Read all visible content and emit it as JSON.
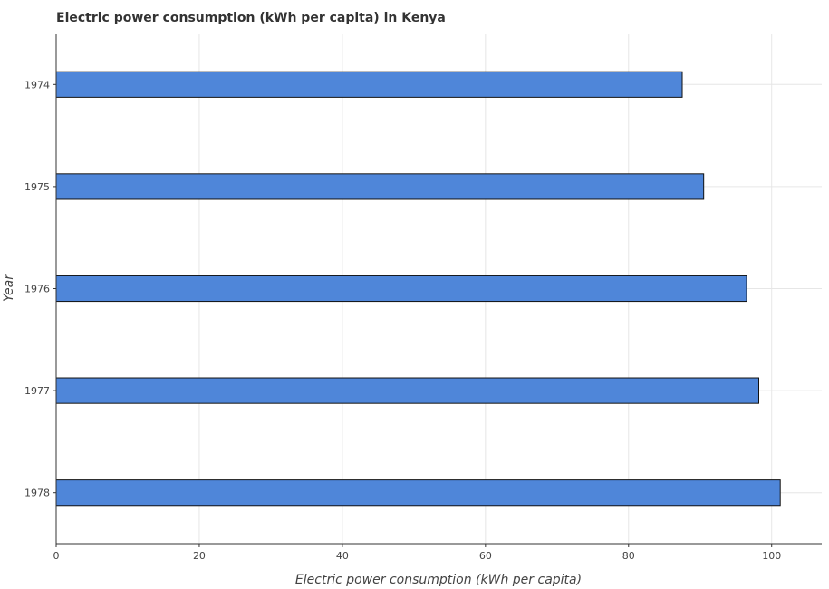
{
  "chart_data": {
    "type": "bar",
    "orientation": "horizontal",
    "title": "Electric power consumption (kWh per capita) in Kenya",
    "xlabel": "Electric power consumption (kWh per capita)",
    "ylabel": "Year",
    "categories": [
      "1974",
      "1975",
      "1976",
      "1977",
      "1978"
    ],
    "values": [
      87.5,
      90.5,
      96.5,
      98.2,
      101.2
    ],
    "xlim": [
      0,
      107
    ],
    "xticks": [
      0,
      20,
      40,
      60,
      80,
      100
    ],
    "grid": true,
    "bar_color": "#4f86d9"
  }
}
